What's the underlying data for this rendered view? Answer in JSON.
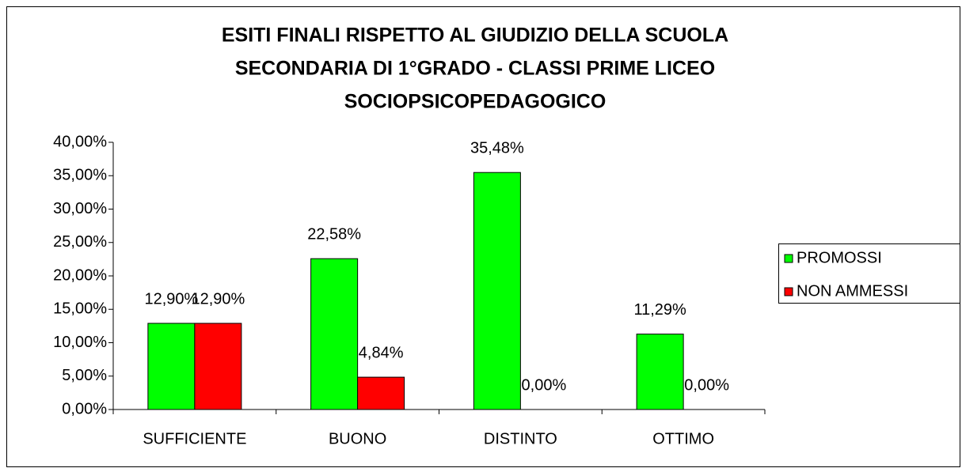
{
  "chart_data": {
    "type": "bar",
    "title": [
      "ESITI FINALI RISPETTO AL GIUDIZIO DELLA SCUOLA",
      "SECONDARIA DI 1°GRADO - CLASSI PRIME LICEO",
      "SOCIOPSICOPEDAGOGICO"
    ],
    "categories": [
      "SUFFICIENTE",
      "BUONO",
      "DISTINTO",
      "OTTIMO"
    ],
    "series": [
      {
        "name": "PROMOSSI",
        "color": "#00ff00",
        "values": [
          12.9,
          22.58,
          35.48,
          11.29
        ],
        "value_labels": [
          "12,90%",
          "22,58%",
          "35,48%",
          "11,29%"
        ]
      },
      {
        "name": "NON AMMESSI",
        "color": "#ff0000",
        "values": [
          12.9,
          4.84,
          0,
          0
        ],
        "value_labels": [
          "12,90%",
          "4,84%",
          "0,00%",
          "0,00%"
        ]
      }
    ],
    "ylim": [
      0,
      40
    ],
    "yticks": [
      {
        "value": 0,
        "label": "0,00%"
      },
      {
        "value": 5,
        "label": "5,00%"
      },
      {
        "value": 10,
        "label": "10,00%"
      },
      {
        "value": 15,
        "label": "15,00%"
      },
      {
        "value": 20,
        "label": "20,00%"
      },
      {
        "value": 25,
        "label": "25,00%"
      },
      {
        "value": 30,
        "label": "30,00%"
      },
      {
        "value": 35,
        "label": "35,00%"
      },
      {
        "value": 40,
        "label": "40,00%"
      }
    ],
    "grid": false,
    "legend": "right"
  }
}
